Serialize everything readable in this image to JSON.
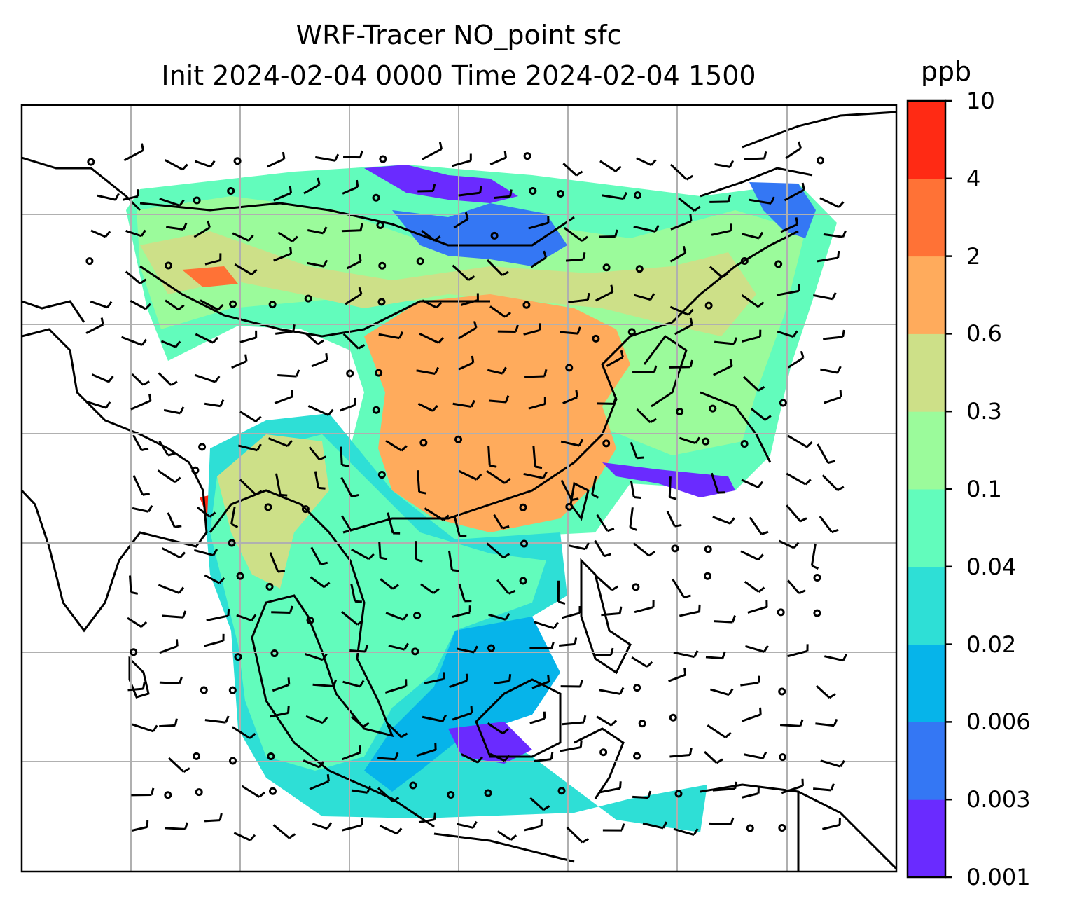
{
  "title": {
    "line1": "WRF-Tracer NO_point sfc",
    "line2": "Init 2024-02-04 0000 Time 2024-02-04 1500"
  },
  "colorbar": {
    "unit": "ppb",
    "levels": [
      "0.001",
      "0.003",
      "0.006",
      "0.02",
      "0.04",
      "0.1",
      "0.3",
      "0.6",
      "2",
      "4",
      "10"
    ],
    "colors": [
      "#6a2bff",
      "#3477f4",
      "#06b4ea",
      "#2edfd6",
      "#62fcbc",
      "#9bfb9b",
      "#cde088",
      "#ffab5c",
      "#ff7236",
      "#ff2a14"
    ]
  },
  "map": {
    "land_color": "#ffffff",
    "coast_color": "#000000",
    "grid_color": "#b0b0b0"
  }
}
